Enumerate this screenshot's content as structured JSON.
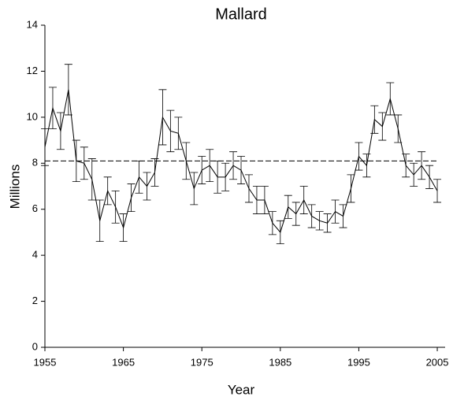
{
  "chart_data": {
    "type": "line",
    "title": "Mallard",
    "x_label": "Year",
    "y_label": "Millions",
    "x": [
      1955,
      1956,
      1957,
      1958,
      1959,
      1960,
      1961,
      1962,
      1963,
      1964,
      1965,
      1966,
      1967,
      1968,
      1969,
      1970,
      1971,
      1972,
      1973,
      1974,
      1975,
      1976,
      1977,
      1978,
      1979,
      1980,
      1981,
      1982,
      1983,
      1984,
      1985,
      1986,
      1987,
      1988,
      1989,
      1990,
      1991,
      1992,
      1993,
      1994,
      1995,
      1996,
      1997,
      1998,
      1999,
      2000,
      2001,
      2002,
      2003,
      2004,
      2005
    ],
    "series": [
      {
        "color": "#000000",
        "values": [
          8.7,
          10.4,
          9.4,
          11.2,
          8.1,
          8.0,
          7.3,
          5.5,
          6.8,
          6.1,
          5.2,
          6.5,
          7.4,
          7.0,
          7.6,
          10.0,
          9.4,
          9.3,
          8.1,
          6.9,
          7.7,
          7.9,
          7.4,
          7.4,
          7.9,
          7.7,
          6.9,
          6.4,
          6.4,
          5.4,
          5.0,
          6.1,
          5.8,
          6.4,
          5.7,
          5.5,
          5.4,
          5.9,
          5.7,
          6.9,
          8.3,
          7.9,
          9.9,
          9.6,
          10.8,
          9.5,
          7.9,
          7.5,
          7.9,
          7.4,
          6.8
        ],
        "errors": [
          0.8,
          0.9,
          0.8,
          1.1,
          0.9,
          0.7,
          0.9,
          0.9,
          0.6,
          0.7,
          0.6,
          0.6,
          0.7,
          0.6,
          0.6,
          1.2,
          0.9,
          0.7,
          0.8,
          0.7,
          0.6,
          0.7,
          0.7,
          0.6,
          0.6,
          0.6,
          0.6,
          0.6,
          0.6,
          0.5,
          0.5,
          0.5,
          0.5,
          0.6,
          0.5,
          0.4,
          0.4,
          0.5,
          0.5,
          0.6,
          0.6,
          0.5,
          0.6,
          0.6,
          0.7,
          0.6,
          0.5,
          0.5,
          0.6,
          0.5,
          0.5
        ]
      }
    ],
    "reference_line": 8.1,
    "xlim": [
      1955,
      2006
    ],
    "xticks": [
      1955,
      1965,
      1975,
      1985,
      1995,
      2005
    ],
    "ylim": [
      0,
      14
    ],
    "yticks": [
      0,
      2,
      4,
      6,
      8,
      10,
      12,
      14
    ]
  }
}
